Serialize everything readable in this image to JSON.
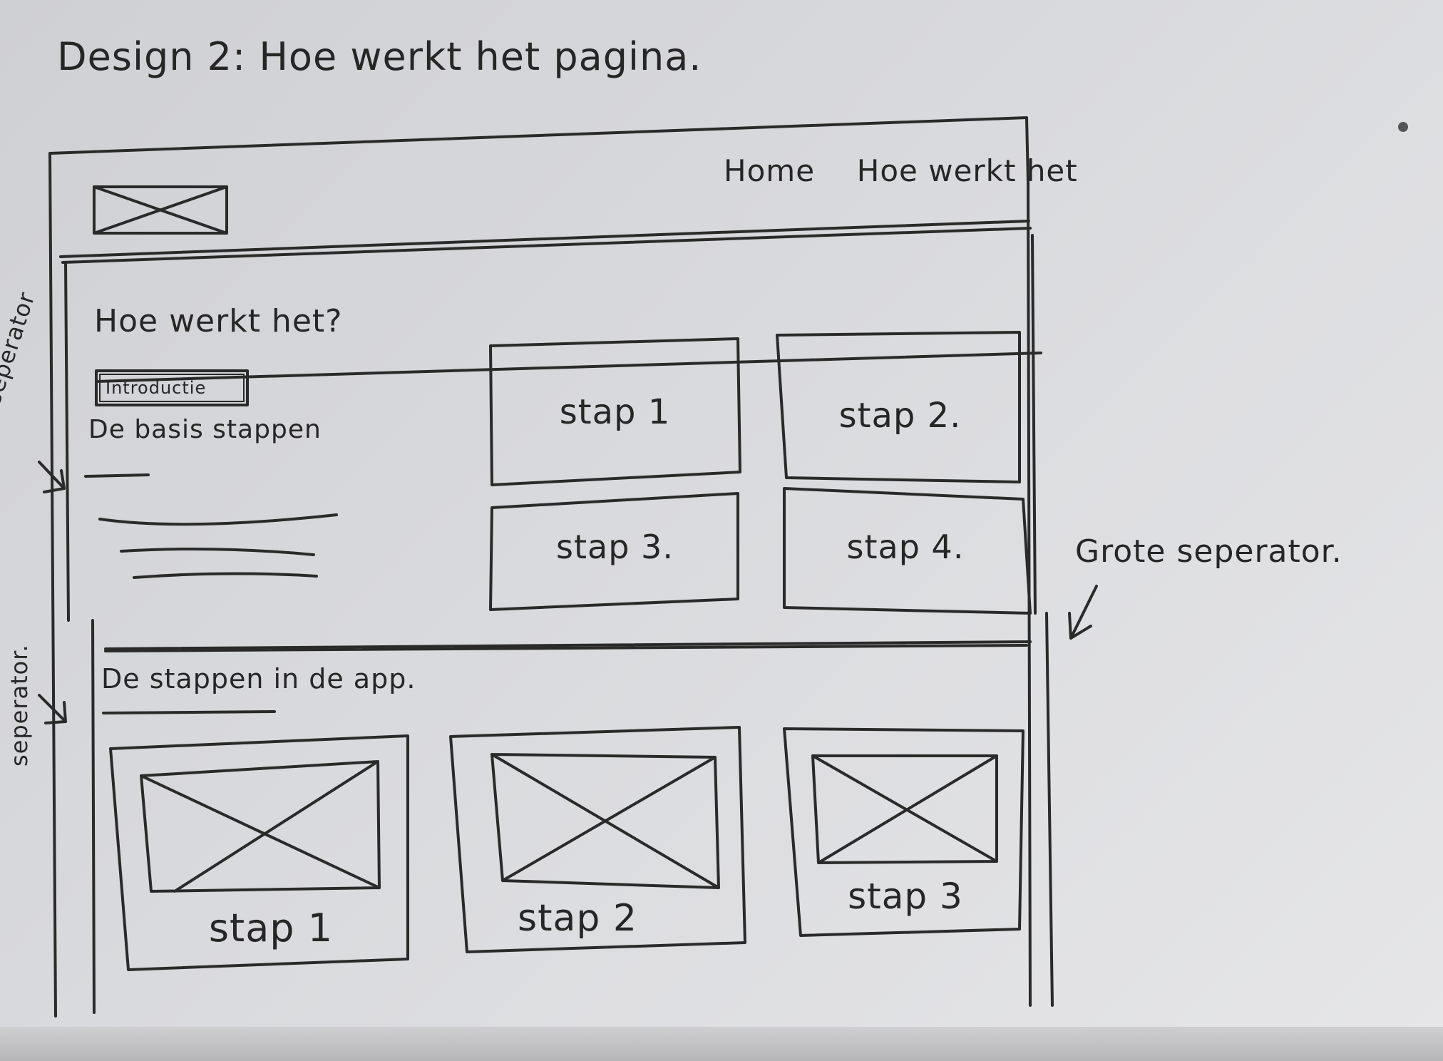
{
  "sheet": {
    "title": "Design 2: Hoe werkt het pagina.",
    "annotations": {
      "left_top": "seperator",
      "left_bottom": "seperator.",
      "right": "Grote seperator."
    }
  },
  "wireframe": {
    "nav": {
      "items": [
        "Home",
        "Hoe werkt het"
      ]
    },
    "intro": {
      "heading": "Hoe werkt het?",
      "tag": "Introductie",
      "subheading": "De basis stappen"
    },
    "step_grid": {
      "items": [
        "stap 1",
        "stap 2.",
        "stap 3.",
        "stap 4."
      ]
    },
    "app_section": {
      "heading": "De stappen in de app.",
      "cards": [
        "stap 1",
        "stap 2",
        "stap 3"
      ]
    }
  },
  "icons": {
    "placeholder_image": "image-placeholder-icon",
    "arrow": "arrow-down-left-icon"
  }
}
